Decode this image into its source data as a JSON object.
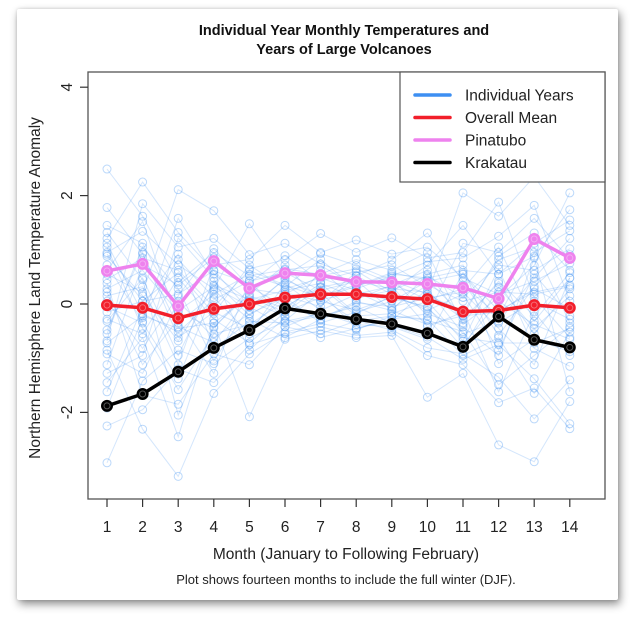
{
  "chart_data": {
    "type": "line",
    "title": [
      "Individual Year Monthly Temperatures and",
      "Years of Large Volcanoes"
    ],
    "xlabel": "Month (January to Following February)",
    "ylabel": "Northern Hemisphere Land Temperature Anomaly",
    "subtitle": "Plot shows fourteen months to include the full winter (DJF).",
    "x": [
      1,
      2,
      3,
      4,
      5,
      6,
      7,
      8,
      9,
      10,
      11,
      12,
      13,
      14
    ],
    "x_tick_labels": [
      "1",
      "2",
      "3",
      "4",
      "5",
      "6",
      "7",
      "8",
      "9",
      "10",
      "11",
      "12",
      "13",
      "14"
    ],
    "y_ticks": [
      -2,
      0,
      2,
      4
    ],
    "y_tick_labels": [
      "-2",
      "0",
      "2",
      "4"
    ],
    "xlim": [
      0.65,
      14.95
    ],
    "ylim": [
      -3.6,
      4.3
    ],
    "grid": false,
    "legend": {
      "position": "top-right",
      "entries": [
        {
          "label": "Individual Years",
          "color": "#3d8ff2"
        },
        {
          "label": "Overall Mean",
          "color": "#f21f2b"
        },
        {
          "label": "Pinatubo",
          "color": "#ee82ee"
        },
        {
          "label": "Krakatau",
          "color": "#000000"
        }
      ]
    },
    "series": [
      {
        "name": "Overall Mean",
        "color": "#f21f2b",
        "values": [
          -0.02,
          -0.07,
          -0.26,
          -0.09,
          0.0,
          0.12,
          0.18,
          0.18,
          0.13,
          0.09,
          -0.14,
          -0.12,
          -0.02,
          -0.07
        ]
      },
      {
        "name": "Pinatubo",
        "color": "#ee82ee",
        "values": [
          0.61,
          0.74,
          -0.04,
          0.79,
          0.29,
          0.57,
          0.53,
          0.41,
          0.4,
          0.37,
          0.3,
          0.1,
          1.2,
          0.85
        ]
      },
      {
        "name": "Krakatau",
        "color": "#000000",
        "values": [
          -1.88,
          -1.66,
          -1.25,
          -0.81,
          -0.48,
          -0.08,
          -0.18,
          -0.28,
          -0.37,
          -0.54,
          -0.79,
          -0.23,
          -0.66,
          -0.8
        ]
      }
    ],
    "individual_years": {
      "name": "Individual Years",
      "color": "#3d8ff2",
      "values": [
        [
          2.49,
          1.62,
          0.4,
          0.95,
          0.52,
          0.63,
          0.71,
          0.33,
          0.58,
          0.44,
          -0.21,
          0.88,
          1.31,
          0.62
        ],
        [
          -2.93,
          -1.42,
          -0.85,
          -1.1,
          -0.63,
          -0.32,
          -0.18,
          -0.25,
          -0.4,
          -0.61,
          -1.02,
          -0.75,
          -1.38,
          -2.21
        ],
        [
          1.21,
          2.25,
          1.32,
          0.61,
          0.38,
          0.89,
          0.42,
          0.61,
          0.22,
          0.72,
          1.45,
          0.55,
          0.88,
          1.74
        ],
        [
          -0.85,
          -2.31,
          -3.18,
          -1.65,
          -0.92,
          -0.52,
          -0.36,
          -0.48,
          -0.22,
          -0.3,
          -0.51,
          -1.49,
          -0.95,
          -0.42
        ],
        [
          0.55,
          0.21,
          2.11,
          1.72,
          0.91,
          1.12,
          0.74,
          0.52,
          0.81,
          1.31,
          0.42,
          -0.58,
          0.32,
          0.91
        ],
        [
          -1.45,
          -0.62,
          -2.45,
          -0.35,
          -2.08,
          -0.65,
          -0.49,
          -0.62,
          -0.58,
          -1.72,
          -1.28,
          -2.6,
          -2.91,
          -1.8
        ],
        [
          0.95,
          1.34,
          0.72,
          0.28,
          1.48,
          0.52,
          0.93,
          0.71,
          0.44,
          0.18,
          2.05,
          1.62,
          2.35,
          1.45
        ],
        [
          -0.32,
          0.48,
          -0.95,
          0.42,
          -0.21,
          0.21,
          0.05,
          -0.11,
          0.12,
          -0.05,
          -0.82,
          0.31,
          -0.45,
          0.15
        ],
        [
          1.78,
          0.92,
          -0.42,
          -0.71,
          0.12,
          -0.15,
          0.31,
          0.44,
          -0.12,
          0.55,
          0.72,
          -1.1,
          -0.65,
          -0.88
        ],
        [
          -1.92,
          -0.25,
          0.82,
          0.12,
          -0.55,
          0.38,
          -0.12,
          0.18,
          0.33,
          -0.42,
          -0.15,
          0.82,
          1.05,
          -0.35
        ],
        [
          0.22,
          -1.12,
          -0.28,
          -1.28,
          0.44,
          -0.31,
          0.22,
          -0.45,
          -0.31,
          0.28,
          -0.55,
          -0.32,
          0.48,
          1.21
        ],
        [
          -0.68,
          1.85,
          1.05,
          1.21,
          0.65,
          0.82,
          1.3,
          0.95,
          1.22,
          0.85,
          0.95,
          1.88,
          0.12,
          -0.62
        ],
        [
          1.05,
          -0.45,
          -1.58,
          -0.55,
          -0.38,
          0.05,
          -0.3,
          0.02,
          -0.05,
          0.11,
          0.22,
          -0.45,
          -1.12,
          0.48
        ],
        [
          -1.12,
          0.72,
          0.35,
          0.85,
          0.25,
          0.65,
          0.55,
          0.82,
          0.62,
          0.95,
          -0.38,
          0.12,
          0.71,
          2.05
        ],
        [
          0.38,
          -1.68,
          -1.85,
          -0.92,
          -1.12,
          -0.42,
          -0.55,
          -0.31,
          -0.48,
          -0.81,
          -0.92,
          -1.35,
          -2.12,
          -1.4
        ],
        [
          -0.15,
          0.05,
          0.58,
          -0.18,
          0.72,
          0.28,
          0.48,
          0.25,
          0.05,
          0.42,
          0.55,
          -0.12,
          0.22,
          0.35
        ],
        [
          1.45,
          1.12,
          -0.12,
          0.32,
          -0.05,
          0.45,
          0.15,
          0.35,
          0.48,
          -0.22,
          1.12,
          0.95,
          1.58,
          0.82
        ],
        [
          -2.25,
          -1.95,
          -1.2,
          -1.45,
          -0.75,
          -0.55,
          -0.42,
          -0.58,
          -0.52,
          -0.95,
          -1.12,
          -1.82,
          -1.55,
          -2.3
        ],
        [
          0.72,
          -0.32,
          1.58,
          0.55,
          0.05,
          -0.22,
          0.62,
          0.08,
          0.35,
          0.62,
          -0.35,
          0.42,
          -0.22,
          0.58
        ],
        [
          -0.48,
          0.95,
          -0.62,
          -0.15,
          -0.45,
          0.15,
          -0.05,
          0.52,
          0.18,
          -0.12,
          0.18,
          -0.85,
          0.55,
          -0.22
        ],
        [
          0.05,
          -0.82,
          0.15,
          1.02,
          0.32,
          -0.05,
          0.32,
          -0.22,
          -0.18,
          0.05,
          -0.68,
          0.65,
          -0.82,
          -1.15
        ],
        [
          1.32,
          0.45,
          -2.05,
          -0.42,
          0.18,
          0.72,
          0.05,
          0.58,
          0.72,
          0.32,
          0.35,
          -0.22,
          0.95,
          1.35
        ],
        [
          -1.62,
          -0.05,
          0.92,
          -0.82,
          -0.32,
          -0.35,
          -0.22,
          -0.05,
          -0.35,
          -0.55,
          -0.75,
          0.05,
          -0.38,
          -0.65
        ],
        [
          0.62,
          1.52,
          -0.35,
          0.18,
          0.55,
          0.32,
          0.82,
          0.28,
          0.52,
          0.78,
          0.85,
          1.25,
          1.82,
          0.05
        ],
        [
          -0.92,
          -1.28,
          0.05,
          -0.62,
          -0.18,
          0.12,
          -0.35,
          -0.15,
          0.05,
          0.15,
          -0.12,
          -1.62,
          -0.15,
          -0.95
        ],
        [
          0.15,
          0.32,
          -1.12,
          0.72,
          0.82,
          1.45,
          0.95,
          1.18,
          0.92,
          1.05,
          0.48,
          0.18,
          0.42,
          0.75
        ],
        [
          -0.28,
          -0.55,
          0.48,
          -0.28,
          -0.72,
          -0.15,
          0.12,
          -0.32,
          -0.22,
          -0.28,
          -0.95,
          -0.62,
          -1.65,
          -0.52
        ],
        [
          0.88,
          0.15,
          -0.68,
          0.35,
          0.08,
          0.25,
          0.38,
          0.12,
          0.25,
          0.52,
          0.12,
          0.72,
          0.62,
          1.02
        ],
        [
          -0.55,
          1.05,
          0.28,
          -1.05,
          -0.05,
          -0.42,
          -0.15,
          -0.38,
          -0.42,
          -0.65,
          0.58,
          -0.35,
          0.05,
          -0.28
        ],
        [
          1.12,
          -0.18,
          -0.52,
          0.08,
          0.42,
          0.58,
          0.25,
          0.42,
          0.28,
          0.22,
          -0.28,
          0.38,
          -0.55,
          0.28
        ],
        [
          -1.28,
          -0.95,
          1.22,
          0.48,
          -0.85,
          -0.25,
          -0.62,
          -0.45,
          -0.28,
          -0.18,
          -0.42,
          -0.95,
          0.85,
          -1.62
        ],
        [
          0.28,
          0.62,
          -0.15,
          -0.45,
          0.28,
          0.18,
          0.52,
          0.65,
          0.38,
          0.08,
          0.28,
          1.05,
          -0.32,
          0.48
        ],
        [
          -0.05,
          -0.35,
          -1.38,
          0.25,
          -0.28,
          -0.62,
          -0.28,
          0.05,
          -0.12,
          -0.38,
          -0.22,
          -0.15,
          0.28,
          -0.08
        ],
        [
          0.45,
          0.85,
          0.62,
          -0.05,
          0.62,
          0.35,
          0.12,
          0.32,
          0.55,
          0.48,
          0.62,
          0.55,
          1.12,
          1.55
        ],
        [
          -0.72,
          -0.22,
          -0.45,
          -0.35,
          0.15,
          -0.08,
          0.38,
          -0.18,
          0.15,
          -0.08,
          -0.62,
          -0.72,
          -0.72,
          -0.45
        ],
        [
          0.92,
          0.05,
          0.18,
          0.62,
          -0.12,
          0.48,
          0.08,
          0.22,
          -0.08,
          0.35,
          0.05,
          0.22,
          0.18,
          0.32
        ]
      ]
    }
  }
}
